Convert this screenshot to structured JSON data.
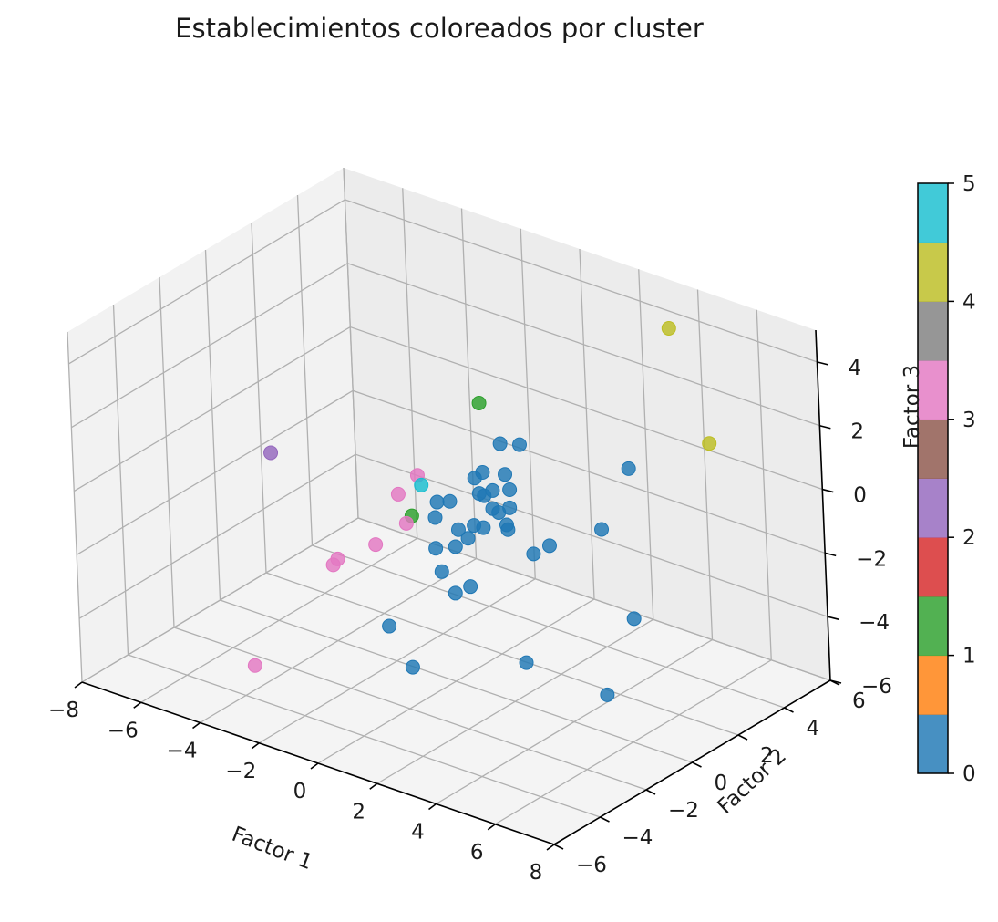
{
  "chart_data": {
    "type": "scatter",
    "title": "Establecimientos coloreados por cluster",
    "xlabel": "Factor 1",
    "ylabel": "Factor 2",
    "zlabel": "Factor 3",
    "xlim": [
      -8,
      8
    ],
    "ylim": [
      -6,
      6
    ],
    "zlim": [
      -6,
      5
    ],
    "x_ticks": [
      "−8",
      "−6",
      "−4",
      "−2",
      "0",
      "2",
      "4",
      "6",
      "8"
    ],
    "y_ticks": [
      "−6",
      "−4",
      "−2",
      "0",
      "2",
      "4",
      "6"
    ],
    "z_ticks": [
      "−6",
      "−4",
      "−2",
      "0",
      "2",
      "4"
    ],
    "grid": true,
    "colorbar": {
      "label": "",
      "ticks": [
        "0",
        "1",
        "2",
        "3",
        "4",
        "5"
      ],
      "colors": [
        "#1f77b4",
        "#ff7f0e",
        "#2ca02c",
        "#d62728",
        "#9467bd",
        "#8c564b",
        "#e377c2",
        "#7f7f7f",
        "#bcbd22",
        "#17becf"
      ]
    },
    "series": [
      {
        "cluster": 0,
        "color": "#1f77b4",
        "points": [
          [
            1.2,
            0.8,
            1.5
          ],
          [
            0.8,
            0.5,
            0.6
          ],
          [
            1.0,
            1.2,
            0.3
          ],
          [
            1.3,
            1.0,
            0.0
          ],
          [
            0.6,
            0.4,
            0.4
          ],
          [
            0.9,
            0.2,
            0.1
          ],
          [
            1.5,
            0.0,
            -0.1
          ],
          [
            1.4,
            -0.3,
            -0.6
          ],
          [
            0.2,
            -0.2,
            -0.2
          ],
          [
            0.5,
            0.9,
            -0.4
          ],
          [
            0.7,
            -0.5,
            -0.8
          ],
          [
            1.1,
            -0.6,
            -0.9
          ],
          [
            0.3,
            -1.0,
            -1.3
          ],
          [
            0.9,
            -0.9,
            -1.1
          ],
          [
            1.8,
            0.2,
            -0.6
          ],
          [
            2.0,
            0.0,
            -0.6
          ],
          [
            1.6,
            0.6,
            -0.3
          ],
          [
            1.2,
            0.4,
            0.2
          ],
          [
            0.0,
            -0.6,
            -0.6
          ],
          [
            -0.4,
            0.0,
            -0.5
          ],
          [
            1.0,
            -0.2,
            -0.7
          ],
          [
            1.3,
            0.5,
            -0.5
          ],
          [
            0.8,
            -1.4,
            -1.7
          ],
          [
            1.4,
            -1.6,
            -2.1
          ],
          [
            1.6,
            -1.2,
            -2.0
          ],
          [
            2.6,
            0.3,
            -1.3
          ],
          [
            3.8,
            3.0,
            0.6
          ],
          [
            4.0,
            1.5,
            -0.6
          ],
          [
            3.0,
            0.5,
            -1.0
          ],
          [
            1.3,
            1.5,
            1.2
          ],
          [
            -0.6,
            -2.0,
            -3.6
          ],
          [
            0.8,
            -2.8,
            -4.1
          ],
          [
            3.9,
            -1.8,
            -3.4
          ],
          [
            5.8,
            0.5,
            -2.4
          ],
          [
            6.8,
            -2.0,
            -3.4
          ]
        ]
      },
      {
        "cluster": 1,
        "color": "#2ca02c",
        "points": [
          [
            -0.6,
            2.2,
            1.6
          ],
          [
            -0.8,
            -0.6,
            -0.8
          ]
        ]
      },
      {
        "cluster": 2,
        "color": "#9467bd",
        "points": [
          [
            -5.4,
            -0.8,
            -0.2
          ]
        ]
      },
      {
        "cluster": 3,
        "color": "#e377c2",
        "points": [
          [
            -1.2,
            0.2,
            0.0
          ],
          [
            -1.4,
            -0.4,
            -0.4
          ],
          [
            -1.0,
            -0.6,
            -1.1
          ],
          [
            -1.6,
            -1.2,
            -1.7
          ],
          [
            -2.6,
            -1.6,
            -2.3
          ],
          [
            -2.6,
            -1.8,
            -2.4
          ],
          [
            -3.0,
            -4.8,
            -4.4
          ]
        ]
      },
      {
        "cluster": 4,
        "color": "#bcbd22",
        "points": [
          [
            3.6,
            5.2,
            4.0
          ],
          [
            5.8,
            4.0,
            1.6
          ]
        ]
      },
      {
        "cluster": 5,
        "color": "#17becf",
        "points": [
          [
            -1.0,
            0.1,
            -0.2
          ]
        ]
      }
    ]
  }
}
